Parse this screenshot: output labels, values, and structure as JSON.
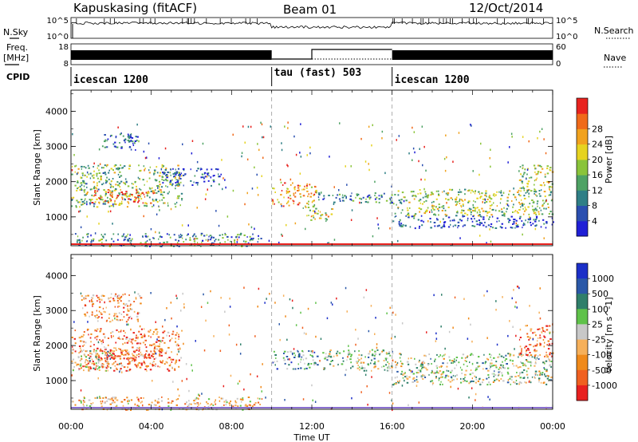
{
  "header": {
    "station": "Kapuskasing (fitACF)",
    "beam": "Beam 01",
    "date": "12/Oct/2014"
  },
  "left_labels": {
    "nsky": "N.Sky",
    "freq_line1": "Freq.",
    "freq_line2": "[MHz]",
    "cpid": "CPID"
  },
  "right_labels": {
    "nsearch": "N.Search",
    "nave": "Nave"
  },
  "noise_panel": {
    "left_ticks": [
      "10^5",
      "10^0"
    ],
    "right_ticks": [
      "10^5",
      "10^0"
    ]
  },
  "freq_panel": {
    "left_ticks": [
      "18",
      "8"
    ],
    "right_ticks": [
      "60",
      "0"
    ]
  },
  "cpid_segments": [
    {
      "label": "icescan 1200",
      "start": 0,
      "end": 10
    },
    {
      "label": "tau (fast) 503",
      "start": 10,
      "end": 16
    },
    {
      "label": "icescan 1200",
      "start": 16,
      "end": 24
    }
  ],
  "chart_data": [
    {
      "type": "heatmap",
      "name": "power",
      "ylabel": "Slant Range [km]",
      "xlim": [
        0,
        24
      ],
      "ylim": [
        180,
        4600
      ],
      "yticks": [
        "1000",
        "2000",
        "3000",
        "4000"
      ],
      "colorbar_label": "Power [dB]",
      "colorbar_ticks": [
        "4",
        "8",
        "12",
        "16",
        "20",
        "24",
        "28"
      ],
      "colors": [
        "#1f1fd6",
        "#2a4fb0",
        "#2f7f86",
        "#4ea264",
        "#8ac43a",
        "#e6d320",
        "#f1a21e",
        "#f06a1a",
        "#e8231f"
      ],
      "regions": [
        {
          "t0": 0.0,
          "t1": 5.5,
          "r0": 1300,
          "r1": 2500,
          "level": 0.45
        },
        {
          "t0": 1.0,
          "t1": 4.2,
          "r0": 1400,
          "r1": 1800,
          "level": 0.85
        },
        {
          "t0": 1.5,
          "t1": 3.5,
          "r0": 2900,
          "r1": 3400,
          "level": 0.2
        },
        {
          "t0": 0.0,
          "t1": 9.5,
          "r0": 180,
          "r1": 550,
          "level": 0.3
        },
        {
          "t0": 4.5,
          "t1": 7.5,
          "r0": 1900,
          "r1": 2400,
          "level": 0.15
        },
        {
          "t0": 10.0,
          "t1": 12.2,
          "r0": 1300,
          "r1": 2000,
          "level": 0.75
        },
        {
          "t0": 12.2,
          "t1": 16.0,
          "r0": 1400,
          "r1": 1700,
          "level": 0.3
        },
        {
          "t0": 11.5,
          "t1": 13.0,
          "r0": 900,
          "r1": 1300,
          "level": 0.6
        },
        {
          "t0": 16.0,
          "t1": 24.0,
          "r0": 1050,
          "r1": 1800,
          "level": 0.5
        },
        {
          "t0": 16.0,
          "t1": 24.0,
          "r0": 700,
          "r1": 1050,
          "level": 0.15
        },
        {
          "t0": 22.3,
          "t1": 24.0,
          "r0": 1700,
          "r1": 2500,
          "level": 0.55
        }
      ]
    },
    {
      "type": "heatmap",
      "name": "velocity",
      "ylabel": "Slant Range [km]",
      "xlabel": "Time UT",
      "xlim": [
        0,
        24
      ],
      "ylim": [
        180,
        4600
      ],
      "xticks": [
        "00:00",
        "04:00",
        "08:00",
        "12:00",
        "16:00",
        "20:00",
        "00:00"
      ],
      "yticks": [
        "1000",
        "2000",
        "3000",
        "4000"
      ],
      "colorbar_label": "Velocity [m s^-1]",
      "colorbar_ticks": [
        "1000",
        "500",
        "100",
        "25",
        "-25",
        "-100",
        "-500",
        "-1000"
      ],
      "colors": [
        "#1b2fc8",
        "#2a58a8",
        "#2f7f6a",
        "#5fc24a",
        "#c8c8c8",
        "#f6b05a",
        "#f08a1a",
        "#f06020",
        "#e8201f"
      ],
      "regions": [
        {
          "t0": 0.0,
          "t1": 5.5,
          "r0": 1300,
          "r1": 2500,
          "level": 0.75
        },
        {
          "t0": 0.0,
          "t1": 2.0,
          "r0": 1300,
          "r1": 1900,
          "level": 0.45
        },
        {
          "t0": 1.5,
          "t1": 4.5,
          "r0": 1400,
          "r1": 1900,
          "level": 0.85
        },
        {
          "t0": 0.5,
          "t1": 3.5,
          "r0": 2700,
          "r1": 3500,
          "level": 0.7
        },
        {
          "t0": 0.0,
          "t1": 9.5,
          "r0": 180,
          "r1": 550,
          "level": 0.6
        },
        {
          "t0": 10.0,
          "t1": 12.3,
          "r0": 1350,
          "r1": 1900,
          "level": 0.3
        },
        {
          "t0": 12.3,
          "t1": 16.0,
          "r0": 1300,
          "r1": 1900,
          "level": 0.45
        },
        {
          "t0": 16.0,
          "t1": 24.0,
          "r0": 900,
          "r1": 1800,
          "level": 0.45
        },
        {
          "t0": 22.3,
          "t1": 24.0,
          "r0": 1700,
          "r1": 2600,
          "level": 0.8
        }
      ]
    }
  ]
}
